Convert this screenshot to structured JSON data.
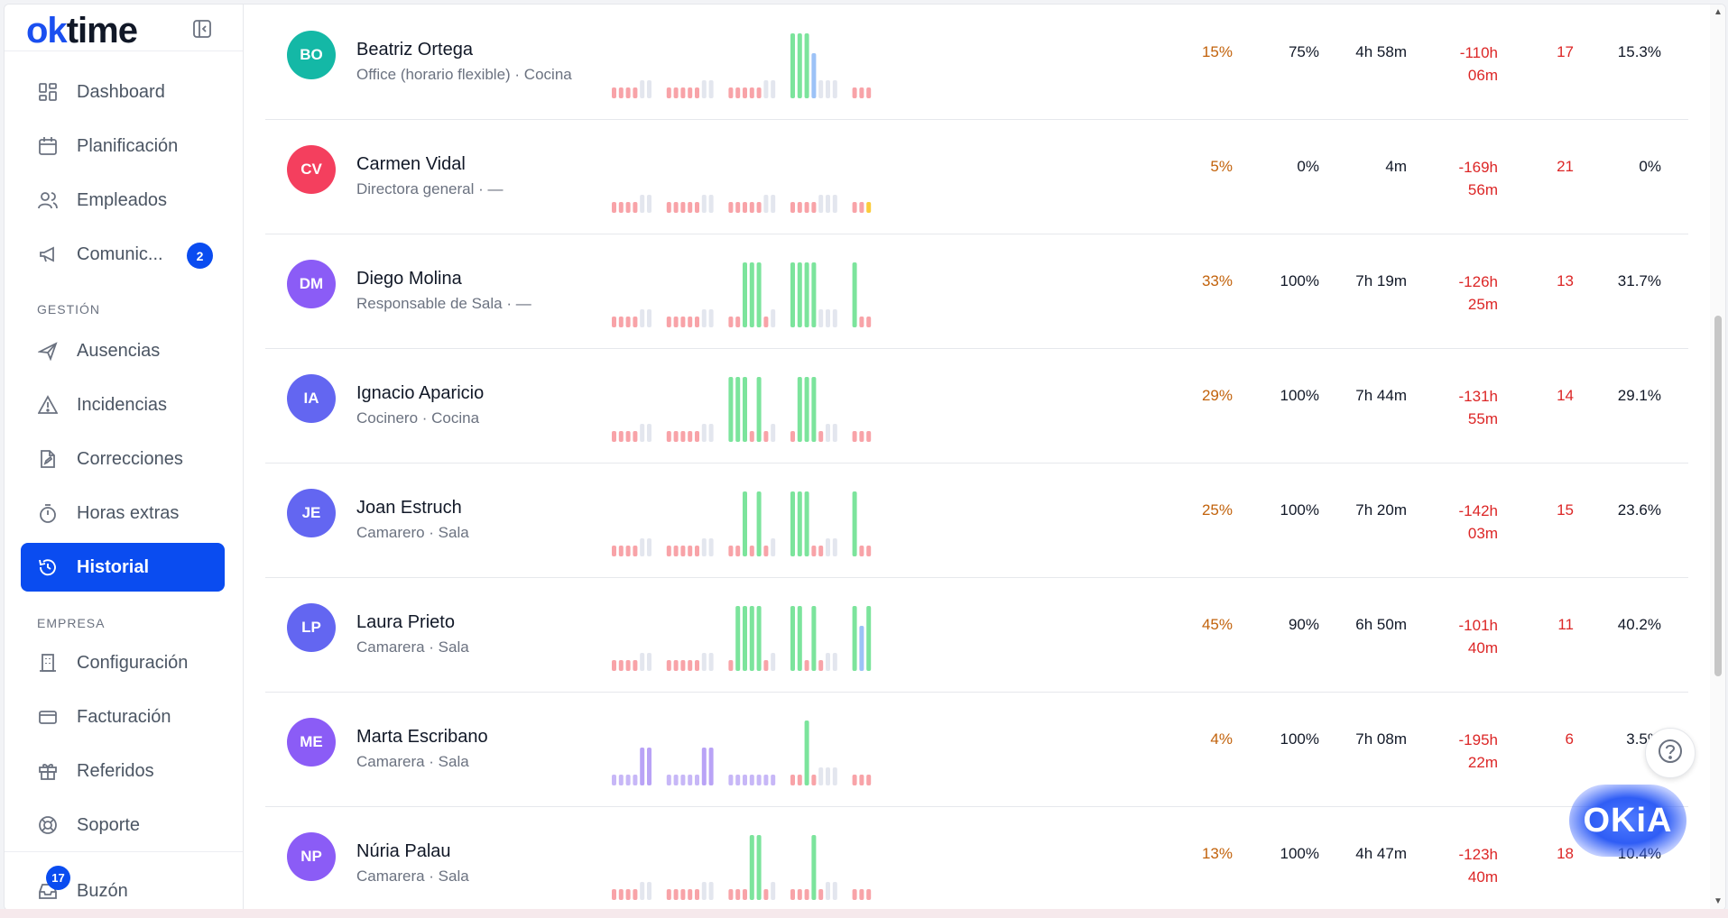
{
  "app": {
    "logo_text": "time",
    "logo_accent": "ok",
    "brand_color": "#0a4cf0"
  },
  "sidebar": {
    "items": [
      {
        "label": "Dashboard",
        "icon": "grid-icon"
      },
      {
        "label": "Planificación",
        "icon": "calendar-icon"
      },
      {
        "label": "Empleados",
        "icon": "users-icon"
      },
      {
        "label": "Comunic...",
        "icon": "megaphone-icon",
        "badge": "2"
      }
    ],
    "section_gestion": "GESTIÓN",
    "gestion_items": [
      {
        "label": "Ausencias",
        "icon": "plane-icon"
      },
      {
        "label": "Incidencias",
        "icon": "warning-icon"
      },
      {
        "label": "Correcciones",
        "icon": "edit-file-icon"
      },
      {
        "label": "Horas extras",
        "icon": "stopwatch-icon"
      },
      {
        "label": "Historial",
        "icon": "history-icon",
        "active": true
      }
    ],
    "section_empresa": "EMPRESA",
    "empresa_items": [
      {
        "label": "Configuración",
        "icon": "building-icon"
      },
      {
        "label": "Facturación",
        "icon": "credit-card-icon"
      },
      {
        "label": "Referidos",
        "icon": "gift-icon"
      },
      {
        "label": "Soporte",
        "icon": "lifebuoy-icon"
      }
    ],
    "inbox": {
      "label": "Buzón",
      "badge": "17",
      "icon": "inbox-icon"
    }
  },
  "rows": [
    {
      "initials": "BO",
      "name": "Beatriz Ortega",
      "subtitle": "Office (horario flexible) · Cocina",
      "avatar_color": "#14b8a6",
      "pct1": "15%",
      "pct2": "75%",
      "time": "4h 58m",
      "balance_h": "-110h",
      "balance_m": "06m",
      "count": "17",
      "pct3": "15.3%",
      "bars": [
        "r",
        "r",
        "r",
        "r",
        "g",
        "g",
        "r",
        "r",
        "r",
        "r",
        "r",
        "g",
        "g",
        "r",
        "r",
        "r",
        "r",
        "r",
        "g",
        "g",
        "G",
        "G",
        "G",
        "B",
        "g",
        "g",
        "g",
        "r",
        "r",
        "r"
      ]
    },
    {
      "initials": "CV",
      "name": "Carmen Vidal",
      "subtitle": "Directora general · —",
      "avatar_color": "#f43f5e",
      "pct1": "5%",
      "pct2": "0%",
      "time": "4m",
      "balance_h": "-169h",
      "balance_m": "56m",
      "count": "21",
      "pct3": "0%",
      "bars": [
        "r",
        "r",
        "r",
        "r",
        "g",
        "g",
        "r",
        "r",
        "r",
        "r",
        "r",
        "g",
        "g",
        "r",
        "r",
        "r",
        "r",
        "r",
        "g",
        "g",
        "r",
        "r",
        "r",
        "r",
        "g",
        "g",
        "g",
        "r",
        "r",
        "y"
      ]
    },
    {
      "initials": "DM",
      "name": "Diego Molina",
      "subtitle": "Responsable de Sala · —",
      "avatar_color": "#8b5cf6",
      "pct1": "33%",
      "pct2": "100%",
      "time": "7h 19m",
      "balance_h": "-126h",
      "balance_m": "25m",
      "count": "13",
      "pct3": "31.7%",
      "bars": [
        "r",
        "r",
        "r",
        "r",
        "g",
        "g",
        "r",
        "r",
        "r",
        "r",
        "r",
        "g",
        "g",
        "r",
        "r",
        "G",
        "G",
        "G",
        "r",
        "g",
        "G",
        "G",
        "G",
        "G",
        "g",
        "g",
        "g",
        "G",
        "r",
        "r"
      ]
    },
    {
      "initials": "IA",
      "name": "Ignacio Aparicio",
      "subtitle": "Cocinero · Cocina",
      "avatar_color": "#6366f1",
      "pct1": "29%",
      "pct2": "100%",
      "time": "7h 44m",
      "balance_h": "-131h",
      "balance_m": "55m",
      "count": "14",
      "pct3": "29.1%",
      "bars": [
        "r",
        "r",
        "r",
        "r",
        "g",
        "g",
        "r",
        "r",
        "r",
        "r",
        "r",
        "g",
        "g",
        "G",
        "G",
        "G",
        "r",
        "G",
        "r",
        "g",
        "r",
        "G",
        "G",
        "G",
        "r",
        "g",
        "g",
        "r",
        "r",
        "r"
      ]
    },
    {
      "initials": "JE",
      "name": "Joan Estruch",
      "subtitle": "Camarero · Sala",
      "avatar_color": "#6366f1",
      "pct1": "25%",
      "pct2": "100%",
      "time": "7h 20m",
      "balance_h": "-142h",
      "balance_m": "03m",
      "count": "15",
      "pct3": "23.6%",
      "bars": [
        "r",
        "r",
        "r",
        "r",
        "g",
        "g",
        "r",
        "r",
        "r",
        "r",
        "r",
        "g",
        "g",
        "r",
        "r",
        "G",
        "r",
        "G",
        "r",
        "g",
        "G",
        "G",
        "G",
        "r",
        "r",
        "g",
        "g",
        "G",
        "r",
        "r"
      ]
    },
    {
      "initials": "LP",
      "name": "Laura Prieto",
      "subtitle": "Camarera · Sala",
      "avatar_color": "#6366f1",
      "pct1": "45%",
      "pct2": "90%",
      "time": "6h 50m",
      "balance_h": "-101h",
      "balance_m": "40m",
      "count": "11",
      "pct3": "40.2%",
      "bars": [
        "r",
        "r",
        "r",
        "r",
        "g",
        "g",
        "r",
        "r",
        "r",
        "r",
        "r",
        "g",
        "g",
        "r",
        "G",
        "G",
        "G",
        "G",
        "r",
        "g",
        "G",
        "G",
        "r",
        "G",
        "r",
        "g",
        "g",
        "G",
        "B",
        "G"
      ]
    },
    {
      "initials": "ME",
      "name": "Marta Escribano",
      "subtitle": "Camarera · Sala",
      "avatar_color": "#8b5cf6",
      "pct1": "4%",
      "pct2": "100%",
      "time": "7h 08m",
      "balance_h": "-195h",
      "balance_m": "22m",
      "count": "6",
      "pct3": "3.5%",
      "bars": [
        "p",
        "p",
        "p",
        "p",
        "P",
        "P",
        "p",
        "p",
        "p",
        "p",
        "p",
        "P",
        "P",
        "p",
        "p",
        "p",
        "p",
        "p",
        "p",
        "p",
        "r",
        "r",
        "G",
        "r",
        "g",
        "g",
        "g",
        "r",
        "r",
        "r"
      ]
    },
    {
      "initials": "NP",
      "name": "Núria Palau",
      "subtitle": "Camarera · Sala",
      "avatar_color": "#8b5cf6",
      "pct1": "13%",
      "pct2": "100%",
      "time": "4h 47m",
      "balance_h": "-123h",
      "balance_m": "40m",
      "count": "18",
      "pct3": "10.4%",
      "bars": [
        "r",
        "r",
        "r",
        "r",
        "g",
        "g",
        "r",
        "r",
        "r",
        "r",
        "r",
        "g",
        "g",
        "r",
        "r",
        "r",
        "G",
        "G",
        "r",
        "g",
        "r",
        "r",
        "r",
        "G",
        "r",
        "g",
        "g",
        "r",
        "r",
        "r"
      ]
    }
  ],
  "widgets": {
    "help_icon": "question-circle-icon",
    "assistant_label": "OKiA"
  }
}
